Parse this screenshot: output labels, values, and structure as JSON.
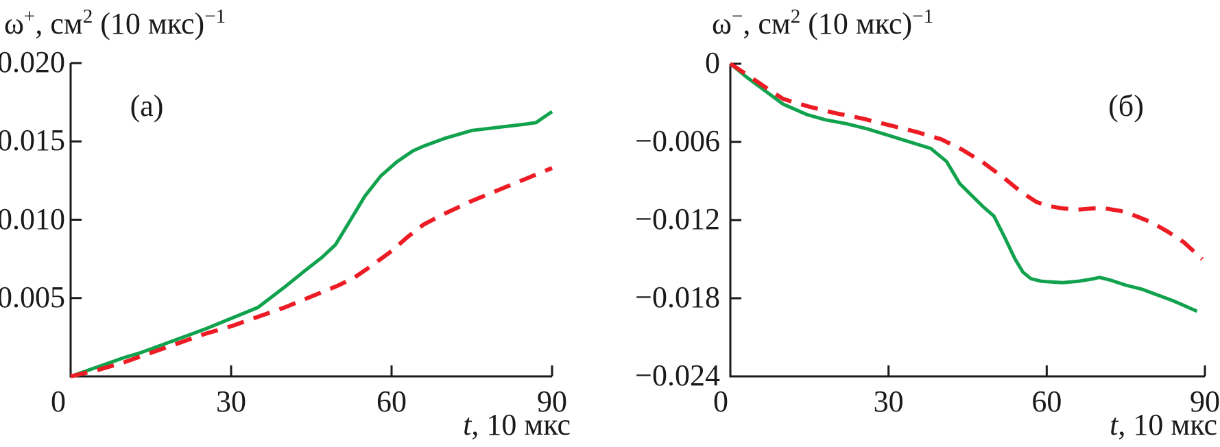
{
  "figure": {
    "background": "#ffffff",
    "axis_color": "#1a1a1a",
    "green_color": "#11a24d",
    "red_color": "#ed1c24"
  },
  "chart_data": [
    {
      "id": "a",
      "type": "line",
      "panel_label": "(а)",
      "ylabel_parts": [
        {
          "t": "ω"
        },
        {
          "t": "+",
          "sup": true
        },
        {
          "t": ", см"
        },
        {
          "t": "2",
          "sup": true
        },
        {
          "t": " (10 мкс)"
        },
        {
          "t": "−1",
          "sup": true
        }
      ],
      "xlabel_parts": [
        {
          "t": "t",
          "it": true
        },
        {
          "t": ", 10 мкс"
        }
      ],
      "xlim": [
        0,
        90
      ],
      "ylim": [
        0,
        0.02
      ],
      "grid": false,
      "legend": "none",
      "xticks": [
        {
          "v": 0,
          "label": "0"
        },
        {
          "v": 30,
          "label": "30"
        },
        {
          "v": 60,
          "label": "60"
        },
        {
          "v": 90,
          "label": "90"
        }
      ],
      "yticks": [
        {
          "v": 0.02,
          "label": "0.020"
        },
        {
          "v": 0.015,
          "label": "0.015"
        },
        {
          "v": 0.01,
          "label": "0.010"
        },
        {
          "v": 0.005,
          "label": "0.005"
        }
      ],
      "series": [
        {
          "name": "green-solid",
          "style": "solid",
          "color": "#11a24d",
          "x": [
            0,
            5,
            10,
            13,
            17,
            21,
            25,
            30,
            35,
            40,
            44,
            47,
            49.5,
            52,
            55,
            58,
            61,
            64,
            66,
            70,
            75,
            80,
            85,
            87,
            90
          ],
          "y": [
            0,
            0.0006,
            0.0012,
            0.0015,
            0.002,
            0.0025,
            0.003,
            0.0037,
            0.0044,
            0.0057,
            0.0068,
            0.0076,
            0.0084,
            0.0098,
            0.0115,
            0.0128,
            0.0137,
            0.0144,
            0.0147,
            0.0152,
            0.0157,
            0.0159,
            0.0161,
            0.0162,
            0.0169
          ]
        },
        {
          "name": "red-dashed",
          "style": "dashed",
          "color": "#ed1c24",
          "x": [
            0,
            5,
            10,
            15,
            20,
            25,
            30,
            35,
            40,
            45,
            50,
            53,
            56,
            60,
            63,
            66,
            70,
            75,
            80,
            85,
            90
          ],
          "y": [
            0,
            0.0004,
            0.0009,
            0.0015,
            0.0021,
            0.0027,
            0.0032,
            0.0038,
            0.0044,
            0.0051,
            0.0058,
            0.0063,
            0.007,
            0.008,
            0.0089,
            0.0097,
            0.0104,
            0.0112,
            0.0119,
            0.0126,
            0.0133
          ]
        }
      ]
    },
    {
      "id": "b",
      "type": "line",
      "panel_label": "(б)",
      "ylabel_parts": [
        {
          "t": "ω"
        },
        {
          "t": "−",
          "sup": true
        },
        {
          "t": ", см"
        },
        {
          "t": "2",
          "sup": true
        },
        {
          "t": " (10 мкс)"
        },
        {
          "t": "−1",
          "sup": true
        }
      ],
      "xlabel_parts": [
        {
          "t": "t",
          "it": true
        },
        {
          "t": ", 10 мкс"
        }
      ],
      "xlim": [
        0,
        90
      ],
      "ylim": [
        -0.024,
        0
      ],
      "grid": false,
      "legend": "none",
      "xticks": [
        {
          "v": 0,
          "label": "0"
        },
        {
          "v": 30,
          "label": "30"
        },
        {
          "v": 60,
          "label": "60"
        },
        {
          "v": 90,
          "label": "90"
        }
      ],
      "yticks": [
        {
          "v": 0,
          "label": "0"
        },
        {
          "v": -0.006,
          "label": "−0.006"
        },
        {
          "v": -0.012,
          "label": "−0.012"
        },
        {
          "v": -0.018,
          "label": "−0.018"
        },
        {
          "v": -0.024,
          "label": "−0.024"
        }
      ],
      "series": [
        {
          "name": "green-solid",
          "style": "solid",
          "color": "#11a24d",
          "x": [
            0,
            3,
            7,
            10,
            14.5,
            18,
            22,
            26,
            30,
            34,
            38,
            41,
            43.5,
            46,
            48,
            50,
            52,
            54,
            55.5,
            57,
            59,
            63,
            66,
            69,
            70,
            72,
            75,
            78,
            80,
            84,
            88.5
          ],
          "y": [
            0,
            -0.001,
            -0.0022,
            -0.0031,
            -0.0039,
            -0.0043,
            -0.0046,
            -0.005,
            -0.0055,
            -0.006,
            -0.0065,
            -0.0075,
            -0.0092,
            -0.0102,
            -0.011,
            -0.0117,
            -0.0133,
            -0.015,
            -0.016,
            -0.0165,
            -0.0167,
            -0.0168,
            -0.0167,
            -0.0165,
            -0.0164,
            -0.0166,
            -0.017,
            -0.0173,
            -0.0176,
            -0.0182,
            -0.019
          ]
        },
        {
          "name": "red-dashed",
          "style": "dashed",
          "color": "#ed1c24",
          "x": [
            0,
            3,
            7,
            10,
            15,
            20,
            25,
            30,
            35,
            40,
            44,
            48,
            52,
            55,
            58,
            60,
            63,
            66,
            69,
            71,
            74,
            77,
            80,
            83,
            86,
            89.5
          ],
          "y": [
            0,
            -0.0008,
            -0.0019,
            -0.0027,
            -0.0033,
            -0.0038,
            -0.0042,
            -0.0047,
            -0.0052,
            -0.0058,
            -0.0066,
            -0.0076,
            -0.0088,
            -0.0098,
            -0.0106,
            -0.0109,
            -0.0111,
            -0.0112,
            -0.0111,
            -0.0111,
            -0.0113,
            -0.0117,
            -0.0122,
            -0.0129,
            -0.0137,
            -0.015
          ]
        }
      ]
    }
  ]
}
